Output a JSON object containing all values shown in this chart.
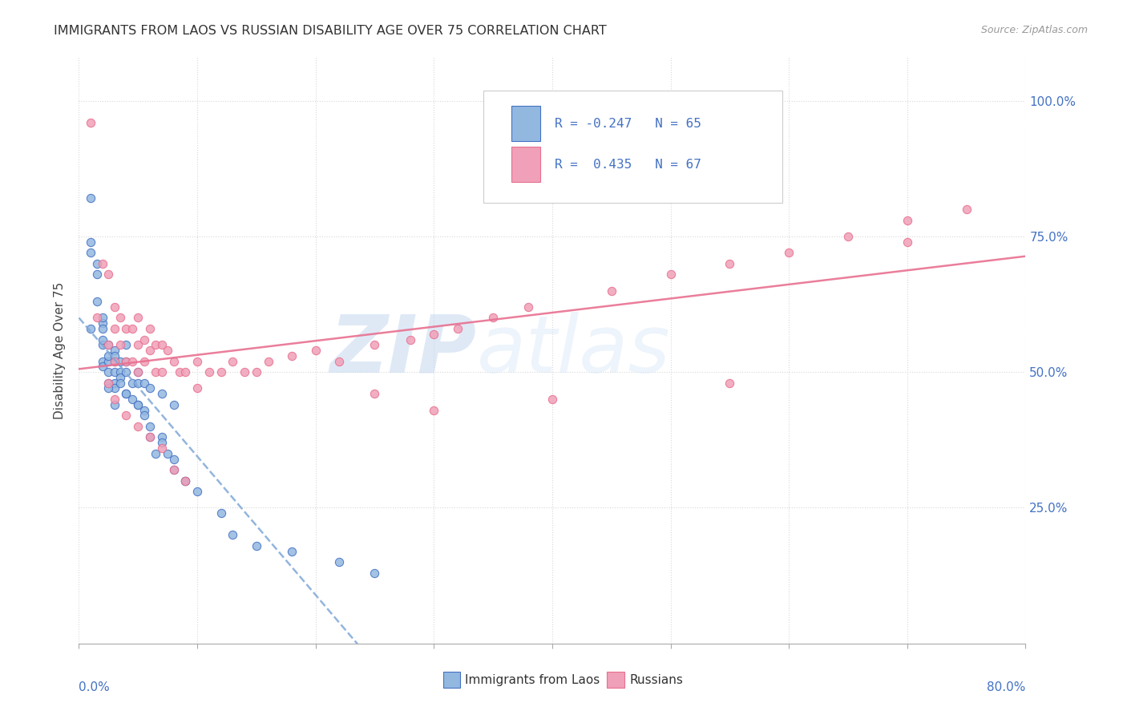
{
  "title": "IMMIGRANTS FROM LAOS VS RUSSIAN DISABILITY AGE OVER 75 CORRELATION CHART",
  "source": "Source: ZipAtlas.com",
  "ylabel": "Disability Age Over 75",
  "legend_label1": "Immigrants from Laos",
  "legend_label2": "Russians",
  "color_blue": "#93b8e0",
  "color_pink": "#f0a0b8",
  "color_blue_dark": "#4472c4",
  "color_pink_dark": "#e87090",
  "color_trendline_blue": "#80a8d8",
  "color_trendline_pink": "#e87090",
  "xmin": 0.0,
  "xmax": 0.8,
  "ymin": 0.0,
  "ymax": 1.08,
  "laos_x": [
    0.01,
    0.01,
    0.015,
    0.015,
    0.015,
    0.02,
    0.02,
    0.02,
    0.02,
    0.02,
    0.025,
    0.025,
    0.025,
    0.025,
    0.03,
    0.03,
    0.03,
    0.03,
    0.03,
    0.035,
    0.035,
    0.035,
    0.04,
    0.04,
    0.04,
    0.04,
    0.045,
    0.045,
    0.05,
    0.05,
    0.05,
    0.055,
    0.055,
    0.06,
    0.06,
    0.07,
    0.07,
    0.08,
    0.08,
    0.09,
    0.01,
    0.01,
    0.02,
    0.02,
    0.025,
    0.025,
    0.03,
    0.03,
    0.035,
    0.04,
    0.05,
    0.055,
    0.06,
    0.065,
    0.07,
    0.075,
    0.08,
    0.09,
    0.1,
    0.12,
    0.13,
    0.15,
    0.18,
    0.22,
    0.25
  ],
  "laos_y": [
    0.72,
    0.74,
    0.68,
    0.7,
    0.63,
    0.59,
    0.58,
    0.55,
    0.52,
    0.51,
    0.55,
    0.52,
    0.5,
    0.48,
    0.54,
    0.52,
    0.5,
    0.48,
    0.47,
    0.52,
    0.5,
    0.49,
    0.55,
    0.52,
    0.5,
    0.46,
    0.48,
    0.45,
    0.5,
    0.48,
    0.44,
    0.48,
    0.43,
    0.47,
    0.4,
    0.46,
    0.38,
    0.44,
    0.32,
    0.3,
    0.82,
    0.58,
    0.6,
    0.56,
    0.53,
    0.47,
    0.53,
    0.44,
    0.48,
    0.46,
    0.44,
    0.42,
    0.38,
    0.35,
    0.37,
    0.35,
    0.34,
    0.3,
    0.28,
    0.24,
    0.2,
    0.18,
    0.17,
    0.15,
    0.13
  ],
  "russian_x": [
    0.01,
    0.015,
    0.02,
    0.025,
    0.025,
    0.03,
    0.03,
    0.03,
    0.035,
    0.035,
    0.04,
    0.04,
    0.045,
    0.045,
    0.05,
    0.05,
    0.05,
    0.055,
    0.055,
    0.06,
    0.06,
    0.065,
    0.065,
    0.07,
    0.07,
    0.075,
    0.08,
    0.085,
    0.09,
    0.1,
    0.1,
    0.11,
    0.12,
    0.13,
    0.14,
    0.15,
    0.16,
    0.18,
    0.2,
    0.22,
    0.25,
    0.3,
    0.35,
    0.28,
    0.32,
    0.38,
    0.45,
    0.5,
    0.55,
    0.6,
    0.65,
    0.7,
    0.025,
    0.03,
    0.04,
    0.05,
    0.06,
    0.07,
    0.08,
    0.09,
    0.25,
    0.3,
    0.4,
    0.55,
    0.7,
    0.75
  ],
  "russian_y": [
    0.96,
    0.6,
    0.7,
    0.68,
    0.55,
    0.62,
    0.58,
    0.52,
    0.6,
    0.55,
    0.58,
    0.52,
    0.58,
    0.52,
    0.6,
    0.55,
    0.5,
    0.56,
    0.52,
    0.58,
    0.54,
    0.55,
    0.5,
    0.55,
    0.5,
    0.54,
    0.52,
    0.5,
    0.5,
    0.52,
    0.47,
    0.5,
    0.5,
    0.52,
    0.5,
    0.5,
    0.52,
    0.53,
    0.54,
    0.52,
    0.55,
    0.57,
    0.6,
    0.56,
    0.58,
    0.62,
    0.65,
    0.68,
    0.7,
    0.72,
    0.75,
    0.78,
    0.48,
    0.45,
    0.42,
    0.4,
    0.38,
    0.36,
    0.32,
    0.3,
    0.46,
    0.43,
    0.45,
    0.48,
    0.74,
    0.8
  ],
  "watermark_zip": "ZIP",
  "watermark_atlas": "atlas",
  "background_color": "#ffffff",
  "grid_color": "#d8d8d8"
}
